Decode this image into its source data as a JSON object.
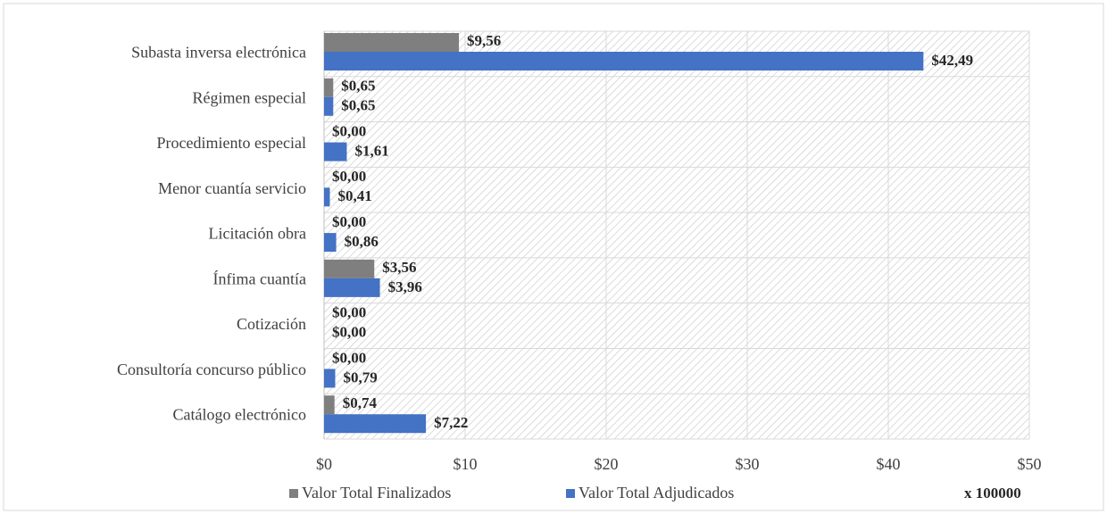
{
  "chart_data": {
    "type": "bar",
    "orientation": "horizontal",
    "categories": [
      "Subasta inversa electrónica",
      "Régimen especial",
      "Procedimiento especial",
      "Menor cuantía servicio",
      "Licitación obra",
      "Ínfima cuantía",
      "Cotización",
      "Consultoría concurso público",
      "Catálogo electrónico"
    ],
    "series": [
      {
        "name": "Valor Total Finalizados",
        "color": "#7f7f7f",
        "values": [
          9.56,
          0.65,
          0,
          0,
          0,
          3.56,
          0,
          0,
          0.74
        ],
        "value_labels": [
          "$9,56",
          "$0,65",
          "$0,00",
          "$0,00",
          "$0,00",
          "$3,56",
          "$0,00",
          "$0,00",
          "$0,74"
        ]
      },
      {
        "name": "Valor Total Adjudicados",
        "color": "#4472c4",
        "values": [
          42.49,
          0.65,
          1.61,
          0.41,
          0.86,
          3.96,
          0,
          0.79,
          7.22
        ],
        "value_labels": [
          "$42,49",
          "$0,65",
          "$1,61",
          "$0,41",
          "$0,86",
          "$3,96",
          "$0,00",
          "$0,79",
          "$7,22"
        ]
      }
    ],
    "xlim": [
      0,
      50
    ],
    "xticks": [
      {
        "value": 0,
        "label": "$0"
      },
      {
        "value": 10,
        "label": "$10"
      },
      {
        "value": 20,
        "label": "$20"
      },
      {
        "value": 30,
        "label": "$30"
      },
      {
        "value": 40,
        "label": "$40"
      },
      {
        "value": 50,
        "label": "$50"
      }
    ],
    "grid": true,
    "annotation": "x 100000",
    "legend": "bottom"
  }
}
